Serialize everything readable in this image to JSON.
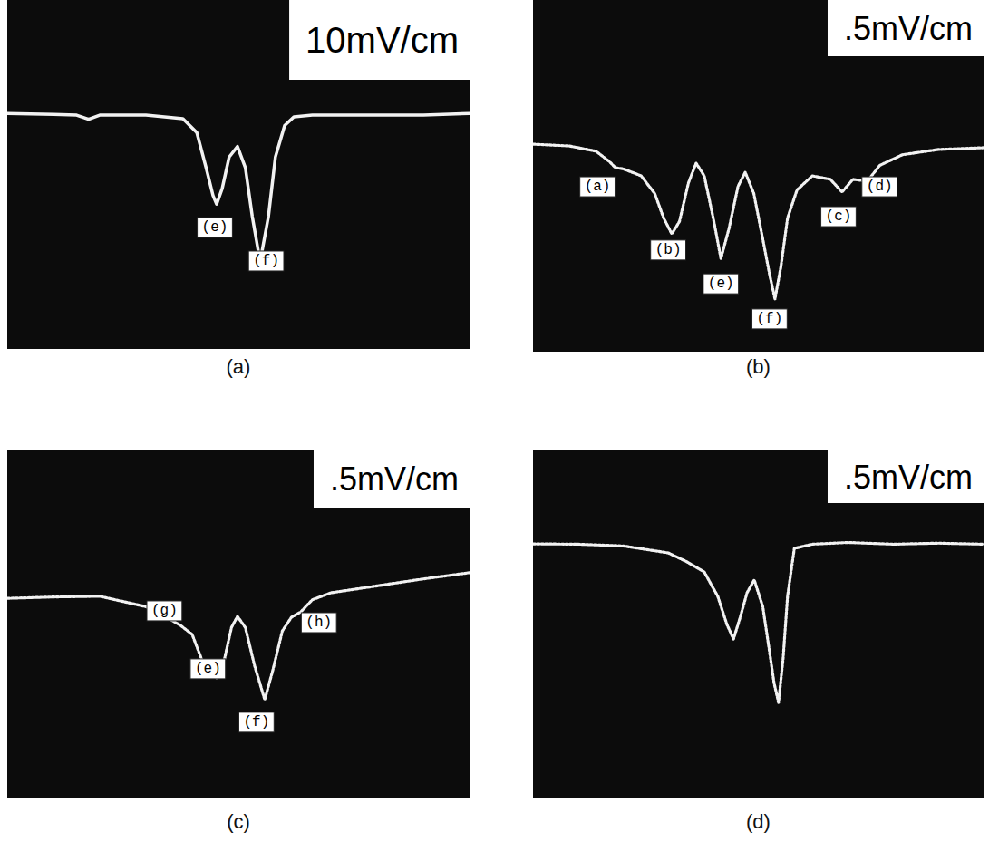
{
  "chart_data": [
    {
      "type": "line",
      "title": "(a)",
      "subtitle": "10mV/cm",
      "xlim": [
        0,
        100
      ],
      "ylim": [
        0,
        100
      ],
      "tick_labels": false,
      "x": [
        0,
        10,
        15,
        17.6,
        20,
        30,
        38,
        41,
        43,
        44.5,
        45.3,
        46.5,
        48,
        49.8,
        51.5,
        53,
        54.7,
        56.5,
        58,
        60,
        62,
        66,
        75,
        90,
        100
      ],
      "series": [
        {
          "color": "#f2f2f2",
          "line_style": "solid",
          "values": [
            67.5,
            67.2,
            67,
            65.8,
            67,
            67,
            66,
            62,
            52,
            44,
            41.5,
            46,
            55,
            58,
            52,
            38,
            25,
            38,
            55,
            64,
            66.5,
            67,
            67,
            67,
            67.5
          ]
        }
      ],
      "annotations": [
        {
          "text": "(e)",
          "x": 44.9,
          "y": 34.8
        },
        {
          "text": "(f)",
          "x": 56,
          "y": 25.2
        }
      ]
    },
    {
      "type": "line",
      "title": "(b)",
      "subtitle": ".5mV/cm",
      "xlim": [
        0,
        100
      ],
      "ylim": [
        0,
        100
      ],
      "tick_labels": false,
      "x": [
        0,
        8,
        14,
        17,
        18.3,
        20,
        24,
        27,
        29,
        30.8,
        32.5,
        34.5,
        36.2,
        38,
        40,
        41.7,
        43.5,
        45.5,
        47.1,
        49,
        51,
        52.5,
        53.7,
        55,
        56.5,
        58.6,
        62,
        66,
        68.6,
        71,
        74.2,
        77,
        82,
        90,
        100
      ],
      "series": [
        {
          "color": "#f2f2f2",
          "line_style": "dotted",
          "values": [
            59,
            58.5,
            57,
            54,
            52.3,
            52,
            50,
            45,
            38,
            33.5,
            37,
            48,
            53.6,
            50,
            38,
            26.5,
            35,
            47,
            51,
            45,
            32,
            22,
            15,
            24,
            38,
            46,
            50,
            49,
            45.4,
            49,
            48.5,
            53,
            56,
            57.5,
            58
          ]
        }
      ],
      "annotations": [
        {
          "text": "(a)",
          "x": 14.3,
          "y": 46.9
        },
        {
          "text": "(b)",
          "x": 30,
          "y": 28.9
        },
        {
          "text": "(e)",
          "x": 41.7,
          "y": 19.3
        },
        {
          "text": "(f)",
          "x": 52.5,
          "y": 9.3
        },
        {
          "text": "(c)",
          "x": 67.8,
          "y": 38.4
        },
        {
          "text": "(d)",
          "x": 76.9,
          "y": 46.9
        }
      ]
    },
    {
      "type": "line",
      "title": "(c)",
      "subtitle": ".5mV/cm",
      "xlim": [
        0,
        100
      ],
      "ylim": [
        0,
        100
      ],
      "tick_labels": false,
      "x": [
        0,
        10,
        20,
        30,
        35,
        37.5,
        40,
        42,
        43.5,
        45.3,
        47,
        48.5,
        49.8,
        51.5,
        53.5,
        55.7,
        57.5,
        59.5,
        61.5,
        63.5,
        66,
        70,
        80,
        90,
        100
      ],
      "series": [
        {
          "color": "#f2f2f2",
          "line_style": "dotted",
          "values": [
            57.4,
            57.8,
            58,
            55,
            51.5,
            49.6,
            47,
            40,
            36,
            34.5,
            40,
            49,
            52.2,
            49,
            38,
            28.2,
            37,
            48,
            52,
            53.5,
            57,
            59,
            61,
            63,
            64.8
          ]
        }
      ],
      "annotations": [
        {
          "text": "(g)",
          "x": 34,
          "y": 53.8
        },
        {
          "text": "(e)",
          "x": 43.4,
          "y": 37.1
        },
        {
          "text": "(f)",
          "x": 53.9,
          "y": 21.7
        },
        {
          "text": "(h)",
          "x": 67.4,
          "y": 50.4
        }
      ]
    },
    {
      "type": "line",
      "title": "(d)",
      "subtitle": ".5mV/cm",
      "xlim": [
        0,
        100
      ],
      "ylim": [
        0,
        100
      ],
      "tick_labels": false,
      "x": [
        0,
        10,
        20,
        30,
        34.2,
        38,
        41,
        43,
        44.5,
        46,
        47.5,
        49.1,
        51,
        52.5,
        53.5,
        54.5,
        55.5,
        56.5,
        58,
        62,
        70,
        80,
        90,
        100
      ],
      "series": [
        {
          "color": "#f2f2f2",
          "line_style": "dotted",
          "values": [
            73.1,
            73,
            72.5,
            70.5,
            67.9,
            65,
            58,
            50,
            45.7,
            52,
            59,
            62.7,
            55,
            42,
            33,
            27.4,
            40,
            58,
            71.8,
            73,
            73.5,
            73,
            73.3,
            73
          ]
        }
      ],
      "annotations": []
    }
  ]
}
